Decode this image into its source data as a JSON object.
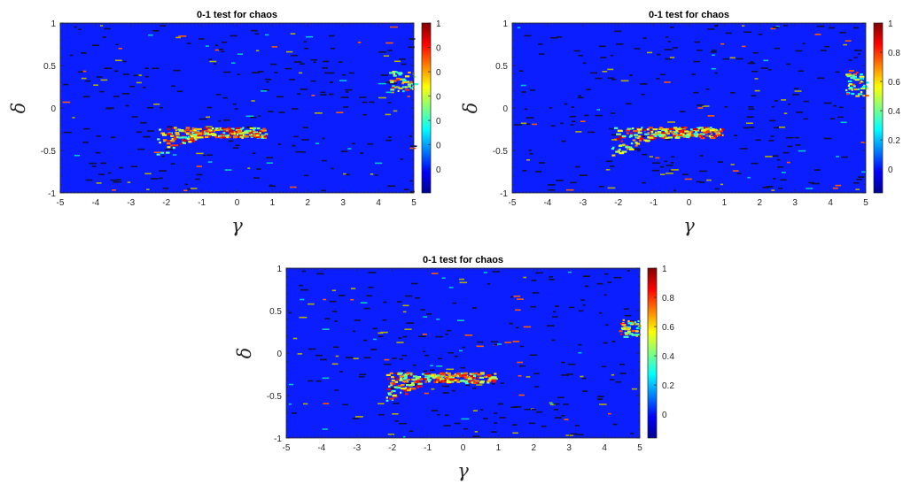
{
  "chart_data": [
    {
      "type": "heatmap",
      "title": "0-1 test for chaos",
      "xlabel": "γ",
      "ylabel": "δ",
      "xlim": [
        -5,
        5
      ],
      "ylim": [
        -1,
        1
      ],
      "xticks": [
        "-5",
        "-4",
        "-3",
        "-2",
        "-1",
        "0",
        "1",
        "2",
        "3",
        "4",
        "5"
      ],
      "yticks": [
        "-1",
        "-0.5",
        "0",
        "0.5",
        "1"
      ],
      "colormap": "jet",
      "colorbar_ticks": [
        "0",
        "0",
        "0",
        "0",
        "0",
        "0",
        "1"
      ],
      "background_value": 0,
      "chaotic_regions": [
        {
          "gamma": [
            -2.3,
            0.8
          ],
          "delta": [
            -0.55,
            -0.2
          ],
          "value": 0.95
        },
        {
          "gamma": [
            4.3,
            5.0
          ],
          "delta": [
            0.2,
            0.45
          ],
          "value": 0.9
        }
      ]
    },
    {
      "type": "heatmap",
      "title": "0-1 test for chaos",
      "xlabel": "γ",
      "ylabel": "δ",
      "xlim": [
        -5,
        5
      ],
      "ylim": [
        -1,
        1
      ],
      "xticks": [
        "-5",
        "-4",
        "-3",
        "-2",
        "-1",
        "0",
        "1",
        "2",
        "3",
        "4",
        "5"
      ],
      "yticks": [
        "-1",
        "-0.5",
        "0",
        "0.5",
        "1"
      ],
      "colormap": "jet",
      "colorbar_ticks": [
        "0",
        "0.2",
        "0.4",
        "0.6",
        "0.8",
        "1"
      ],
      "background_value": 0,
      "chaotic_regions": [
        {
          "gamma": [
            -2.2,
            0.9
          ],
          "delta": [
            -0.55,
            -0.2
          ],
          "value": 0.95
        },
        {
          "gamma": [
            4.4,
            5.0
          ],
          "delta": [
            0.15,
            0.45
          ],
          "value": 0.85
        }
      ]
    },
    {
      "type": "heatmap",
      "title": "0-1 test for chaos",
      "xlabel": "γ",
      "ylabel": "δ",
      "xlim": [
        -5,
        5
      ],
      "ylim": [
        -1,
        1
      ],
      "xticks": [
        "-5",
        "-4",
        "-3",
        "-2",
        "-1",
        "0",
        "1",
        "2",
        "3",
        "4",
        "5"
      ],
      "yticks": [
        "-1",
        "-0.5",
        "0",
        "0.5",
        "1"
      ],
      "colormap": "jet",
      "colorbar_ticks": [
        "0",
        "0.2",
        "0.4",
        "0.6",
        "0.8",
        "1"
      ],
      "background_value": 0,
      "chaotic_regions": [
        {
          "gamma": [
            -2.2,
            0.9
          ],
          "delta": [
            -0.55,
            -0.2
          ],
          "value": 0.95
        },
        {
          "gamma": [
            4.4,
            5.0
          ],
          "delta": [
            0.2,
            0.4
          ],
          "value": 0.9
        }
      ]
    }
  ]
}
